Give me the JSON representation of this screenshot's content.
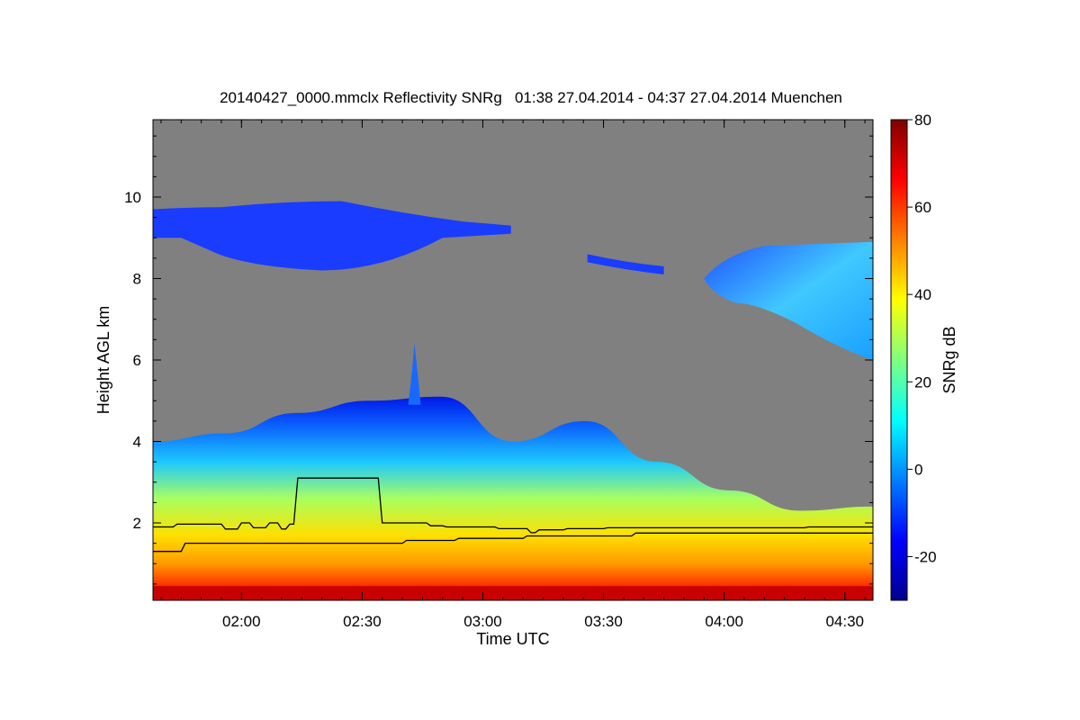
{
  "chart_data": {
    "type": "heatmap",
    "title": "20140427_0000.mmclx Reflectivity SNRg   01:38 27.04.2014 - 04:37 27.04.2014 Muenchen",
    "xlabel": "Time UTC",
    "ylabel": "Height AGL km",
    "xlim": [
      "01:38",
      "04:37"
    ],
    "ylim": [
      0.1,
      11.9
    ],
    "x_ticks": [
      "02:00",
      "02:30",
      "03:00",
      "03:30",
      "04:00",
      "04:30"
    ],
    "y_ticks": [
      2,
      4,
      6,
      8,
      10
    ],
    "colorbar": {
      "label": "SNRg dB",
      "range": [
        -30,
        80
      ],
      "ticks": [
        -20,
        0,
        20,
        40,
        60,
        80
      ],
      "colormap": "jet"
    },
    "background_color": "#808080",
    "features": [
      {
        "kind": "boundary-layer echo",
        "time_start": "01:38",
        "time_end": "04:37",
        "top_km": [
          4.0,
          4.2,
          4.7,
          5.0,
          5.1,
          4.0,
          4.5,
          3.5,
          2.8,
          2.3,
          2.4
        ],
        "max_snr_db": 80
      },
      {
        "kind": "upper cloud",
        "time_start": "01:38",
        "time_end": "03:07",
        "base_km": 8.2,
        "top_km": 9.9,
        "snr_db": -20
      },
      {
        "kind": "upper cloud",
        "time_start": "03:55",
        "time_end": "04:37",
        "base_km": 6.0,
        "top_km": 8.9,
        "snr_db": 5
      },
      {
        "kind": "convective plume",
        "time": "02:43",
        "top_km": 6.4
      }
    ],
    "series": [
      {
        "times": [
          "01:38",
          "01:43",
          "01:44",
          "01:55",
          "01:56",
          "01:59",
          "02:00",
          "02:02",
          "02:03",
          "02:06",
          "02:07",
          "02:09",
          "02:10",
          "02:11",
          "02:12",
          "02:13",
          "02:14",
          "02:30",
          "02:34",
          "02:35",
          "02:46",
          "02:47",
          "02:50",
          "02:51",
          "03:03",
          "03:04",
          "03:11",
          "03:12",
          "03:13",
          "03:14",
          "03:20",
          "03:21",
          "03:30",
          "03:31",
          "04:20",
          "04:21",
          "04:37"
        ],
        "values_km": [
          1.9,
          1.9,
          1.97,
          1.97,
          1.85,
          1.85,
          2.0,
          2.0,
          1.88,
          1.88,
          2.0,
          2.0,
          1.85,
          1.85,
          1.97,
          1.97,
          3.1,
          3.1,
          3.1,
          2.0,
          2.0,
          1.93,
          1.93,
          1.9,
          1.9,
          1.86,
          1.86,
          1.76,
          1.76,
          1.83,
          1.83,
          1.86,
          1.86,
          1.88,
          1.88,
          1.9,
          1.9
        ]
      },
      {
        "times": [
          "01:38",
          "01:45",
          "01:46",
          "02:40",
          "02:41",
          "02:53",
          "02:54",
          "03:10",
          "03:11",
          "03:37",
          "03:38",
          "04:37"
        ],
        "values_km": [
          1.3,
          1.3,
          1.5,
          1.5,
          1.57,
          1.57,
          1.62,
          1.62,
          1.68,
          1.68,
          1.75,
          1.75
        ]
      }
    ]
  }
}
